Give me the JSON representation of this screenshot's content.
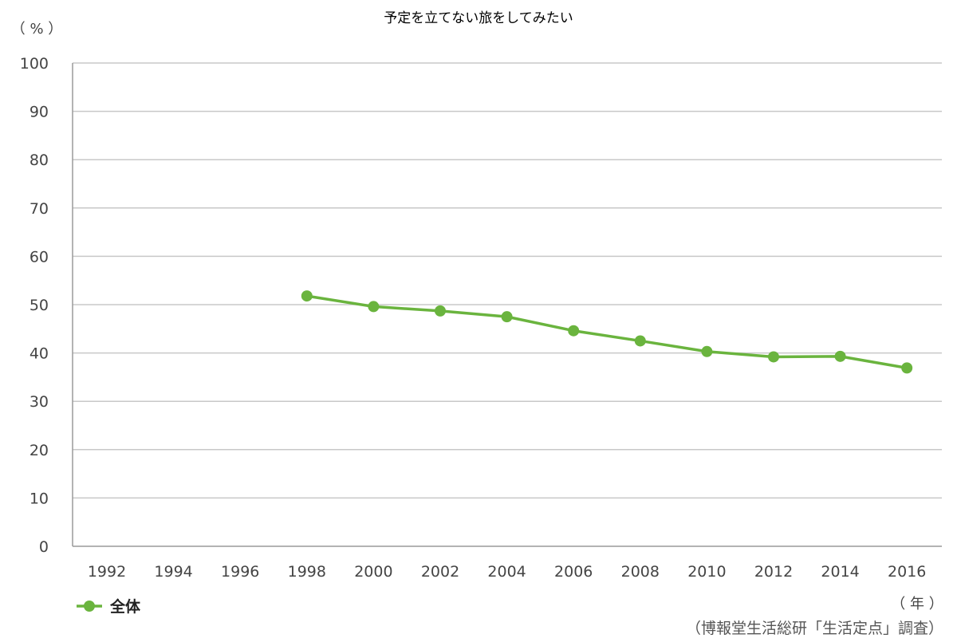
{
  "chart_data": {
    "type": "line",
    "title": "予定を立てない旅をしてみたい",
    "y_unit": "（ % ）",
    "x_unit": "（ 年 ）",
    "source": "（博報堂生活総研「生活定点」調査）",
    "x": [
      "1992",
      "1994",
      "1996",
      "1998",
      "2000",
      "2002",
      "2004",
      "2006",
      "2008",
      "2010",
      "2012",
      "2014",
      "2016"
    ],
    "yticks": [
      "0",
      "10",
      "20",
      "30",
      "40",
      "50",
      "60",
      "70",
      "80",
      "90",
      "100"
    ],
    "ylim": [
      0,
      100
    ],
    "grid": true,
    "legend_position": "bottom-left",
    "series": [
      {
        "name": "全体",
        "color": "#6ab43e",
        "values": [
          null,
          null,
          null,
          51.8,
          49.6,
          48.7,
          47.5,
          44.6,
          42.5,
          40.3,
          39.2,
          39.3,
          36.9
        ]
      }
    ]
  }
}
